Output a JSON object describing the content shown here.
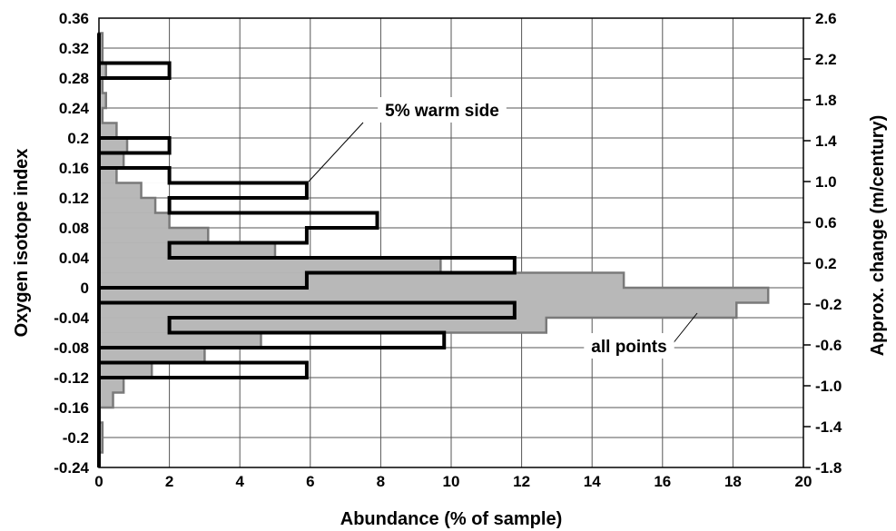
{
  "chart_data": {
    "type": "bar",
    "orientation": "horizontal",
    "xlabel": "Abundance (% of sample)",
    "ylabel": "Oxygen isotope index",
    "y2label": "Approx. change (m/century)",
    "xlim": [
      0,
      20
    ],
    "ylim": [
      -0.24,
      0.36
    ],
    "y2lim": [
      -1.8,
      2.6
    ],
    "x_ticks": [
      "0",
      "2",
      "4",
      "6",
      "8",
      "10",
      "12",
      "14",
      "16",
      "18",
      "20"
    ],
    "y_ticks": [
      "-0.24",
      "-0.2",
      "-0.16",
      "-0.12",
      "-0.08",
      "-0.04",
      "0",
      "0.04",
      "0.08",
      "0.12",
      "0.16",
      "0.2",
      "0.24",
      "0.28",
      "0.32",
      "0.36"
    ],
    "y2_ticks": [
      "-1.8",
      "-1.4",
      "-1.0",
      "-0.6",
      "-0.2",
      "0.2",
      "0.6",
      "1.0",
      "1.4",
      "1.8",
      "2.2",
      "2.6"
    ],
    "grid": true,
    "bin_edges": [
      -0.24,
      -0.22,
      -0.2,
      -0.18,
      -0.16,
      -0.14,
      -0.12,
      -0.1,
      -0.08,
      -0.06,
      -0.04,
      -0.02,
      0,
      0.02,
      0.04,
      0.06,
      0.08,
      0.1,
      0.12,
      0.14,
      0.16,
      0.18,
      0.2,
      0.22,
      0.24,
      0.26,
      0.28,
      0.3,
      0.32,
      0.34
    ],
    "series": [
      {
        "name": "all points",
        "style": "filled",
        "color": "#b8b8b8",
        "values": [
          0,
          0.1,
          0.1,
          0,
          0.4,
          0.7,
          1.5,
          3.0,
          4.6,
          12.7,
          18.1,
          19.0,
          14.9,
          9.7,
          5.0,
          3.1,
          2.0,
          1.6,
          1.2,
          0.5,
          0.7,
          0.8,
          0.5,
          0.1,
          0.2,
          0.1,
          0.2,
          0.1,
          0.1
        ]
      },
      {
        "name": "5% warm side",
        "style": "outline",
        "color": "#000000",
        "values": [
          0,
          0,
          0,
          0,
          0,
          0,
          5.9,
          0,
          9.8,
          2.0,
          11.8,
          0,
          5.9,
          11.8,
          2.0,
          5.9,
          7.9,
          2.0,
          5.9,
          2.0,
          0,
          2.0,
          0,
          0,
          0,
          0,
          2.0,
          0,
          0
        ]
      }
    ]
  },
  "annotations": {
    "warm_side": "5% warm side",
    "all_points": "all points"
  }
}
